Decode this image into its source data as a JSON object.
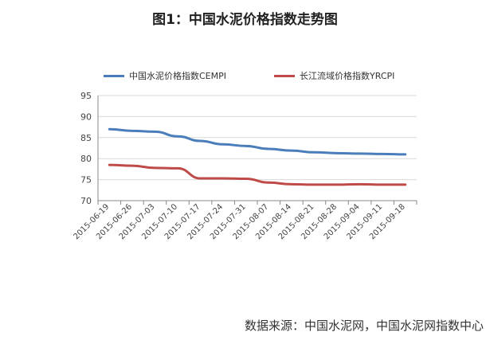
{
  "title": "图1：中国水泥价格指数走势图",
  "source": "数据来源：中国水泥网，中国水泥网指数中心",
  "colors": {
    "cempi": "#4a7ebb",
    "yrcpi": "#be4b48",
    "grid": "#d9d9d9",
    "axis": "#888888"
  },
  "chart_data": {
    "type": "line",
    "title": "图1：中国水泥价格指数走势图",
    "xlabel": "",
    "ylabel": "",
    "ylim": [
      70,
      95
    ],
    "yticks": [
      "70",
      "75",
      "80",
      "85",
      "90",
      "95"
    ],
    "x_ticks": [
      "2015-06-19",
      "2015-06-26",
      "2015-07-03",
      "2015-07-10",
      "2015-07-17",
      "2015-07-24",
      "2015-07-31",
      "2015-08-07",
      "2015-08-14",
      "2015-08-21",
      "2015-08-28",
      "2015-09-04",
      "2015-09-11",
      "2015-09-18"
    ],
    "legend": "top",
    "grid": true,
    "series": [
      {
        "name": "中国水泥价格指数CEMPI",
        "values": [
          87.0,
          86.6,
          86.4,
          85.3,
          84.2,
          83.4,
          83.0,
          82.3,
          81.9,
          81.5,
          81.3,
          81.2,
          81.1,
          81.0
        ]
      },
      {
        "name": "长江流域价格指数YRCPI",
        "values": [
          78.5,
          78.3,
          77.8,
          77.7,
          75.3,
          75.3,
          75.2,
          74.3,
          73.9,
          73.8,
          73.8,
          73.9,
          73.8,
          73.8
        ]
      }
    ]
  }
}
